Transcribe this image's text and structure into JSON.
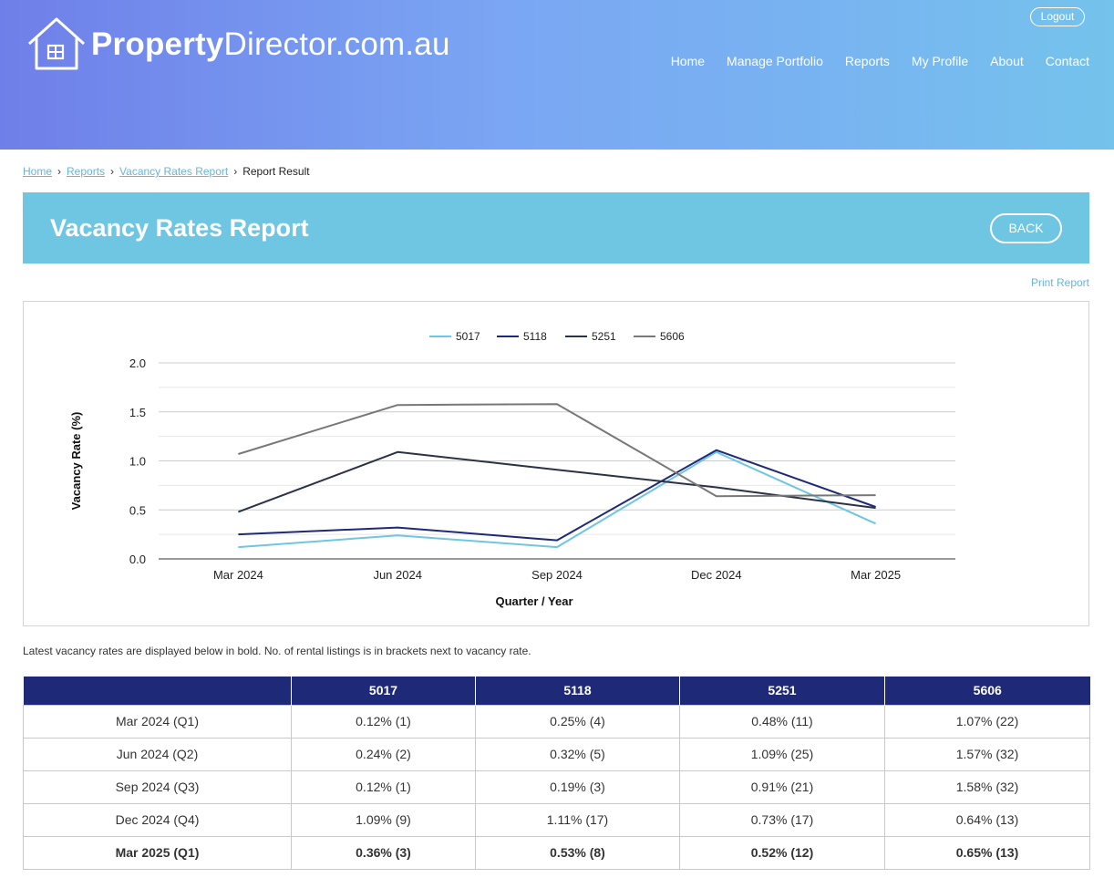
{
  "header": {
    "logo_bold": "Property",
    "logo_rest": "Director.com.au",
    "logout_label": "Logout",
    "nav": [
      "Home",
      "Manage Portfolio",
      "Reports",
      "My Profile",
      "About",
      "Contact"
    ]
  },
  "breadcrumb": {
    "items": [
      "Home",
      "Reports",
      "Vacancy Rates Report"
    ],
    "current": "Report Result"
  },
  "page": {
    "title": "Vacancy Rates Report",
    "back_label": "BACK",
    "print_label": "Print Report",
    "note": "Latest vacancy rates are displayed below in bold. No. of rental listings is in brackets next to vacancy rate."
  },
  "colors": {
    "header_gradient_start": "#6f7fe9",
    "header_gradient_end": "#74c3ec",
    "title_bar": "#6ec6e2",
    "table_header": "#1e2a78",
    "link": "#6ab4d8"
  },
  "chart_data": {
    "type": "line",
    "categories": [
      "Mar 2024",
      "Jun 2024",
      "Sep 2024",
      "Dec 2024",
      "Mar 2025"
    ],
    "series": [
      {
        "name": "5017",
        "color": "#6ec6e2",
        "values": [
          0.12,
          0.24,
          0.12,
          1.09,
          0.36
        ]
      },
      {
        "name": "5118",
        "color": "#1e2a78",
        "values": [
          0.25,
          0.32,
          0.19,
          1.11,
          0.53
        ]
      },
      {
        "name": "5251",
        "color": "#2b3245",
        "values": [
          0.48,
          1.09,
          0.91,
          0.73,
          0.52
        ]
      },
      {
        "name": "5606",
        "color": "#787878",
        "values": [
          1.07,
          1.57,
          1.58,
          0.64,
          0.65
        ]
      }
    ],
    "xlabel": "Quarter / Year",
    "ylabel": "Vacancy Rate (%)",
    "ylim": [
      0,
      2.0
    ],
    "yticks": [
      "0.0",
      "0.5",
      "1.0",
      "1.5",
      "2.0"
    ],
    "grid": true,
    "legend_position": "top-center"
  },
  "table": {
    "headers": [
      "",
      "5017",
      "5118",
      "5251",
      "5606"
    ],
    "rows": [
      [
        "Mar 2024 (Q1)",
        "0.12% (1)",
        "0.25% (4)",
        "0.48% (11)",
        "1.07% (22)"
      ],
      [
        "Jun 2024 (Q2)",
        "0.24% (2)",
        "0.32% (5)",
        "1.09% (25)",
        "1.57% (32)"
      ],
      [
        "Sep 2024 (Q3)",
        "0.12% (1)",
        "0.19% (3)",
        "0.91% (21)",
        "1.58% (32)"
      ],
      [
        "Dec 2024 (Q4)",
        "1.09% (9)",
        "1.11% (17)",
        "0.73% (17)",
        "0.64% (13)"
      ],
      [
        "Mar 2025 (Q1)",
        "0.36% (3)",
        "0.53% (8)",
        "0.52% (12)",
        "0.65% (13)"
      ]
    ]
  }
}
